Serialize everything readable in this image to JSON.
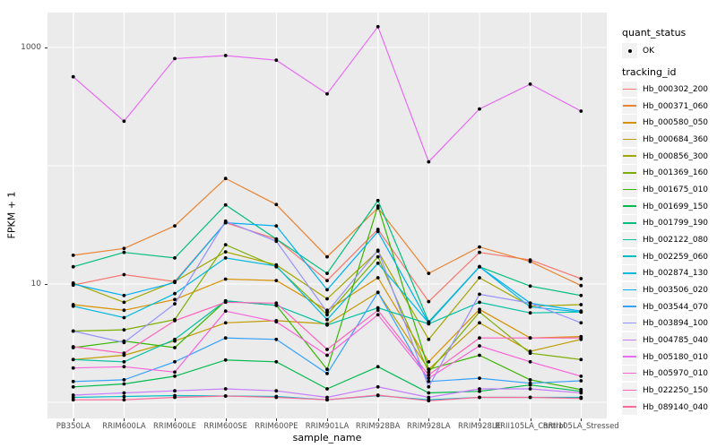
{
  "chart_data": {
    "type": "line",
    "title": "",
    "xlabel": "sample_name",
    "ylabel": "FPKM + 1",
    "y_scale": "log10",
    "ylim": [
      0.73,
      1970
    ],
    "grid": "on",
    "legend_position": "right",
    "y_ticks": [
      {
        "label": "1000",
        "value": 1000
      },
      {
        "label": "10",
        "value": 10
      }
    ],
    "y_gridlines": [
      1,
      10,
      100,
      1000
    ],
    "categories": [
      "PB350LA",
      "RRIM600LA",
      "RRIM600LE",
      "RRIM600SE",
      "RRIM600PE",
      "RRIM901LA",
      "RRIM928BA",
      "RRIM928LA",
      "RRIM928LE",
      "RRII105LA_Control",
      "RRII105LA_Stressed"
    ],
    "series": [
      {
        "tracking_id": "Hb_000302_200",
        "color": "#F8766D",
        "quant_status": "OK",
        "values": [
          9.8,
          12.0,
          10.5,
          33.0,
          24.0,
          10.7,
          29.0,
          7.1,
          18.5,
          16.0,
          11.1
        ]
      },
      {
        "tracking_id": "Hb_000371_060",
        "color": "#EA8331",
        "quant_status": "OK",
        "values": [
          17.5,
          20.0,
          31.0,
          78.0,
          47.0,
          17.0,
          44.0,
          12.3,
          20.6,
          15.5,
          9.7
        ]
      },
      {
        "tracking_id": "Hb_000580_050",
        "color": "#D89000",
        "quant_status": "OK",
        "values": [
          6.7,
          6.0,
          7.4,
          11.0,
          10.7,
          6.0,
          11.3,
          2.2,
          6.1,
          3.5,
          3.6
        ]
      },
      {
        "tracking_id": "Hb_000684_360",
        "color": "#C09B00",
        "quant_status": "OK",
        "values": [
          2.3,
          2.5,
          3.3,
          4.7,
          4.9,
          4.6,
          8.5,
          1.9,
          4.7,
          2.7,
          3.4
        ]
      },
      {
        "tracking_id": "Hb_000856_300",
        "color": "#A3A500",
        "quant_status": "OK",
        "values": [
          10.2,
          7.0,
          10.5,
          18.7,
          14.5,
          7.5,
          19.0,
          3.4,
          11.3,
          6.5,
          6.7
        ]
      },
      {
        "tracking_id": "Hb_001369_160",
        "color": "#7CAE00",
        "quant_status": "OK",
        "values": [
          4.0,
          4.1,
          5.0,
          21.5,
          14.0,
          5.5,
          17.0,
          1.8,
          5.8,
          2.6,
          2.3
        ]
      },
      {
        "tracking_id": "Hb_001675_010",
        "color": "#39B600",
        "quant_status": "OK",
        "values": [
          2.9,
          3.3,
          2.9,
          7.2,
          6.6,
          1.9,
          45.6,
          1.9,
          2.5,
          1.55,
          1.28
        ]
      },
      {
        "tracking_id": "Hb_001699_150",
        "color": "#00BB4E",
        "quant_status": "OK",
        "values": [
          1.35,
          1.43,
          1.66,
          2.28,
          2.2,
          1.3,
          2.0,
          1.2,
          1.24,
          1.4,
          1.24
        ]
      },
      {
        "tracking_id": "Hb_001799_190",
        "color": "#00BF7D",
        "quant_status": "OK",
        "values": [
          14.0,
          18.5,
          16.6,
          46.7,
          24.0,
          12.3,
          50.8,
          4.8,
          14.0,
          9.6,
          8.0
        ]
      },
      {
        "tracking_id": "Hb_002122_080",
        "color": "#00C1A3",
        "quant_status": "OK",
        "values": [
          2.3,
          2.2,
          3.4,
          7.2,
          6.6,
          4.5,
          6.3,
          4.6,
          7.0,
          5.7,
          5.8
        ]
      },
      {
        "tracking_id": "Hb_002259_060",
        "color": "#00BFC4",
        "quant_status": "OK",
        "values": [
          1.1,
          1.12,
          1.14,
          1.13,
          1.12,
          1.05,
          1.14,
          1.05,
          1.1,
          1.1,
          1.1
        ]
      },
      {
        "tracking_id": "Hb_002874_130",
        "color": "#00BAE0",
        "quant_status": "OK",
        "values": [
          6.5,
          5.2,
          8.3,
          16.6,
          14.2,
          5.0,
          15.0,
          4.7,
          14.0,
          6.4,
          5.8
        ]
      },
      {
        "tracking_id": "Hb_003506_020",
        "color": "#00B0F6",
        "quant_status": "OK",
        "values": [
          10.0,
          8.0,
          10.3,
          33.0,
          31.0,
          8.95,
          27.8,
          4.7,
          14.0,
          6.9,
          5.9
        ]
      },
      {
        "tracking_id": "Hb_003544_070",
        "color": "#35A2FF",
        "quant_status": "OK",
        "values": [
          1.5,
          1.55,
          2.2,
          3.5,
          3.4,
          1.75,
          8.5,
          1.5,
          1.6,
          1.45,
          1.52
        ]
      },
      {
        "tracking_id": "Hb_003894_100",
        "color": "#9590FF",
        "quant_status": "OK",
        "values": [
          4.0,
          3.2,
          6.8,
          34.0,
          23.0,
          5.8,
          19.3,
          1.35,
          8.2,
          6.9,
          4.7
        ]
      },
      {
        "tracking_id": "Hb_004785_040",
        "color": "#C77CFF",
        "quant_status": "OK",
        "values": [
          1.15,
          1.2,
          1.25,
          1.3,
          1.25,
          1.1,
          1.35,
          1.1,
          1.3,
          1.3,
          1.2
        ]
      },
      {
        "tracking_id": "Hb_005180_010",
        "color": "#E76BF3",
        "quant_status": "OK",
        "values": [
          565,
          238,
          806,
          855,
          780,
          406,
          1500,
          108,
          302,
          490,
          290
        ]
      },
      {
        "tracking_id": "Hb_005970_010",
        "color": "#FA62DB",
        "quant_status": "OK",
        "values": [
          1.95,
          2.0,
          1.8,
          5.9,
          4.8,
          2.5,
          5.5,
          1.6,
          3.0,
          2.2,
          1.66
        ]
      },
      {
        "tracking_id": "Hb_022250_150",
        "color": "#FF62BC",
        "quant_status": "OK",
        "values": [
          2.95,
          2.6,
          4.9,
          7.0,
          6.9,
          2.8,
          6.0,
          1.7,
          3.5,
          3.5,
          3.5
        ]
      },
      {
        "tracking_id": "Hb_089140_040",
        "color": "#FF6A98",
        "quant_status": "OK",
        "values": [
          1.05,
          1.05,
          1.1,
          1.13,
          1.1,
          1.05,
          1.15,
          1.03,
          1.1,
          1.1,
          1.08
        ]
      }
    ]
  },
  "legend": {
    "quant_status_title": "quant_status",
    "ok_label": "OK",
    "tracking_title": "tracking_id",
    "point_color": "#000000"
  },
  "style": {
    "panel_bg": "#EBEBEB",
    "grid_color": "#FFFFFF",
    "tick_label_color": "#4D4D4D",
    "point_color": "#000000"
  }
}
